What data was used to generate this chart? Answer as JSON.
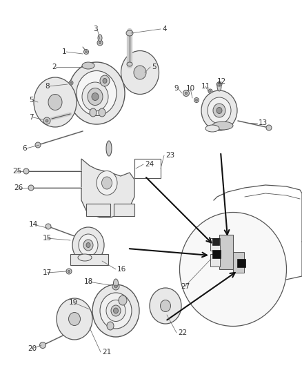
{
  "bg_color": "#ffffff",
  "line_color": "#555555",
  "text_color": "#333333",
  "fill_light": "#e8e8e8",
  "fill_mid": "#cccccc",
  "fill_dark": "#999999",
  "fig_width": 4.38,
  "fig_height": 5.33,
  "dpi": 100
}
